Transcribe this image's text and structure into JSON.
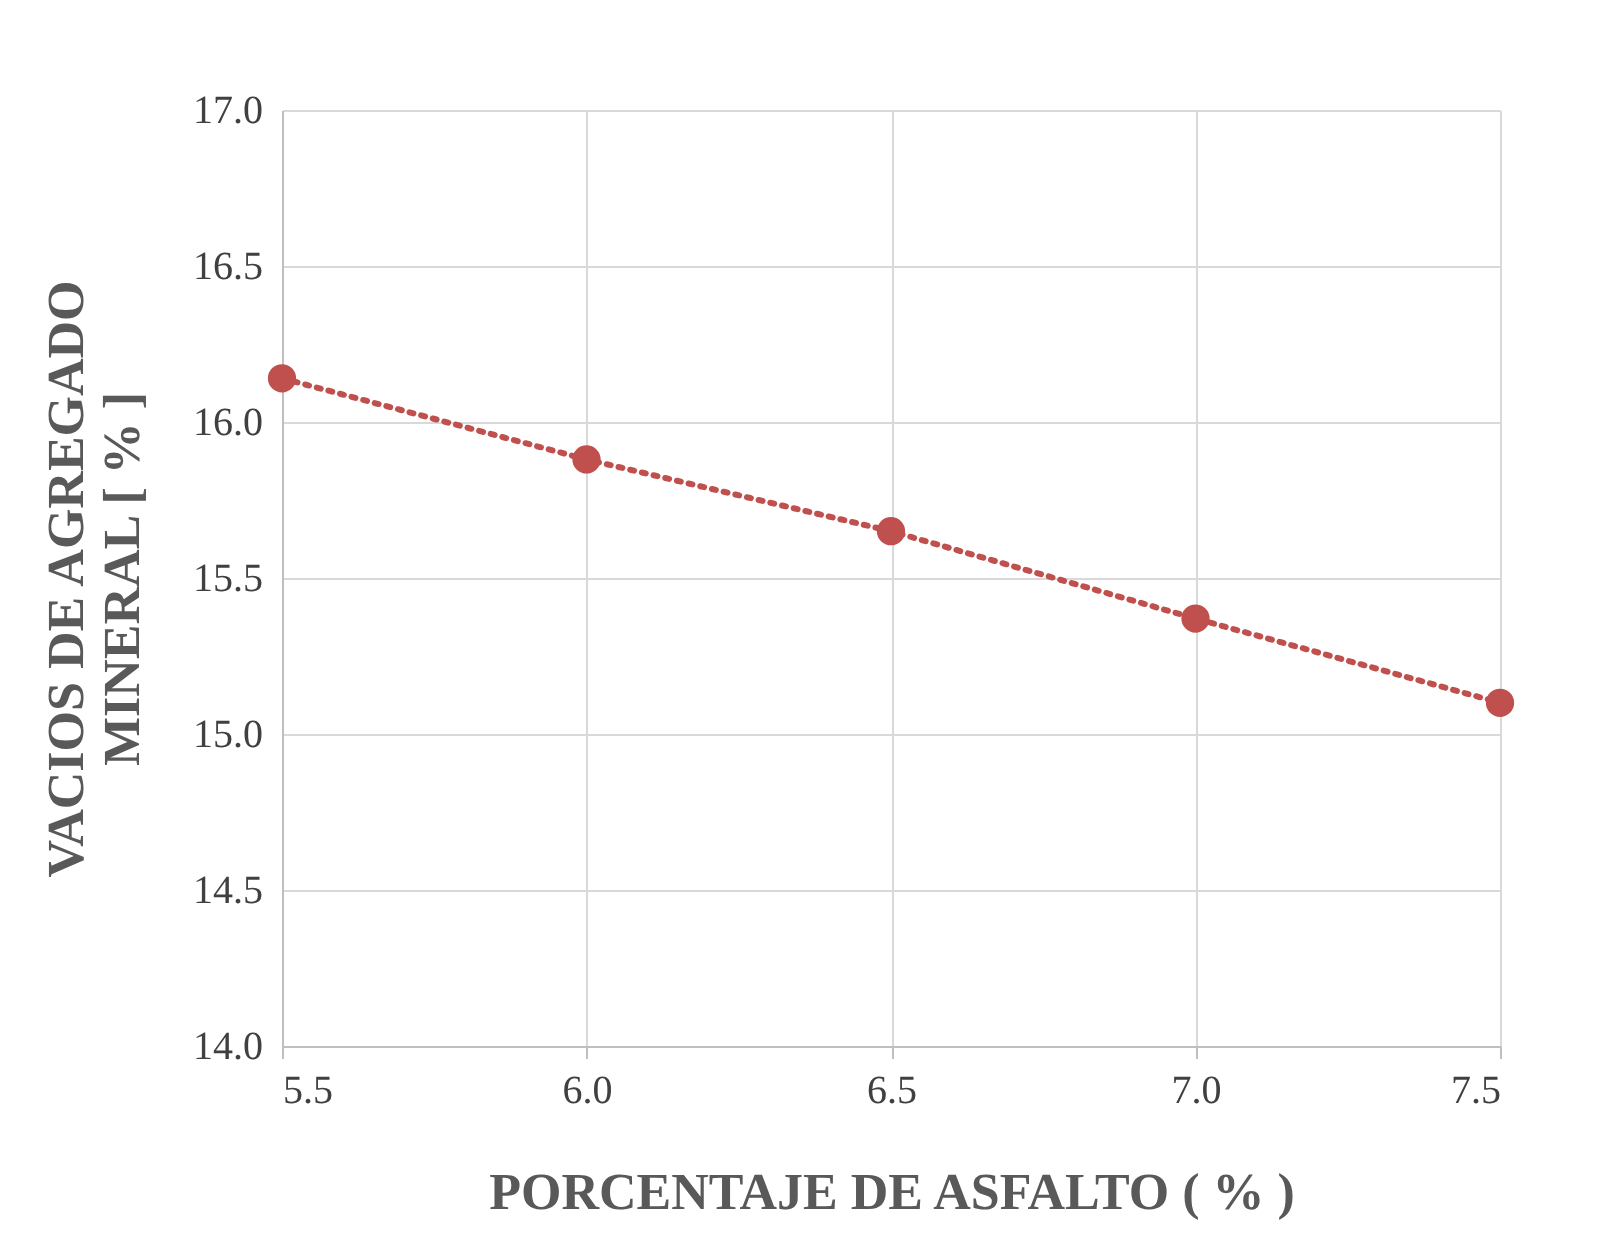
{
  "chart_data": {
    "type": "line",
    "xlabel": "PORCENTAJE DE ASFALTO ( % )",
    "ylabel": "VACIOS DE AGREGADO\nMINERAL  [ % ]",
    "x": [
      5.5,
      6.0,
      6.5,
      7.0,
      7.5
    ],
    "series": [
      {
        "color": "#c0504d",
        "values": [
          16.14,
          15.88,
          15.65,
          15.37,
          15.1
        ]
      }
    ],
    "xlim": [
      5.5,
      7.5
    ],
    "xticks": [
      {
        "value": 5.5,
        "label": "5.5"
      },
      {
        "value": 6,
        "label": "6.0"
      },
      {
        "value": 6.5,
        "label": "6.5"
      },
      {
        "value": 7,
        "label": "7.0"
      },
      {
        "value": 7.5,
        "label": "7.5"
      }
    ],
    "ylim": [
      14,
      17
    ],
    "yticks": [
      {
        "value": 14,
        "label": "14.0"
      },
      {
        "value": 14.5,
        "label": "14.5"
      },
      {
        "value": 15,
        "label": "15.0"
      },
      {
        "value": 15.5,
        "label": "15.5"
      },
      {
        "value": 16,
        "label": "16.0"
      },
      {
        "value": 16.5,
        "label": "16.5"
      },
      {
        "value": 17,
        "label": "17.0"
      }
    ],
    "grid": true,
    "marker": "circle",
    "line_style": "dotted",
    "legend": false
  }
}
